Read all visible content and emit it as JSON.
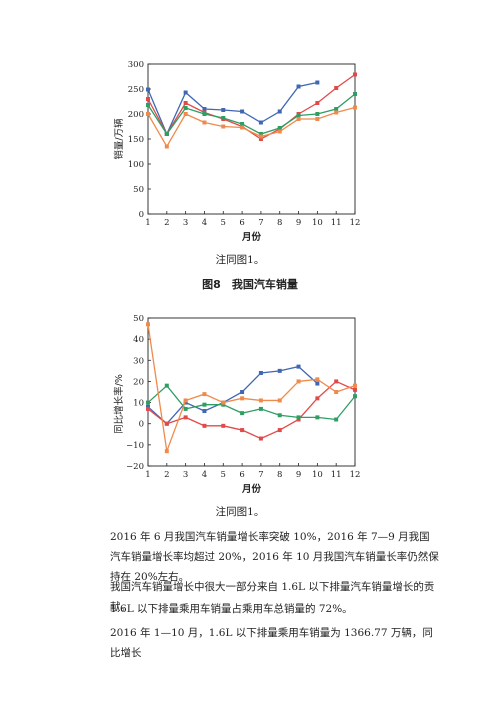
{
  "charts": [
    {
      "ylabel": "销量/万辆",
      "xlabel": "月份",
      "note": "注同图1。",
      "caption": "图8　我国汽车销量",
      "chart_data": {
        "type": "line",
        "x": [
          1,
          2,
          3,
          4,
          5,
          6,
          7,
          8,
          9,
          10,
          11,
          12
        ],
        "xlim": [
          1,
          12
        ],
        "ylim": [
          0,
          300
        ],
        "yticks": [
          0,
          50,
          100,
          150,
          200,
          250,
          300
        ],
        "grid": false,
        "series": [
          {
            "color": "#3f67b4",
            "values": [
              249,
              160,
              243,
              210,
              208,
              205,
              183,
              205,
              255,
              263,
              null,
              null
            ]
          },
          {
            "color": "#e24a4a",
            "values": [
              230,
              160,
              222,
              203,
              190,
              175,
              150,
              170,
              200,
              222,
              252,
              279
            ]
          },
          {
            "color": "#2e9e63",
            "values": [
              218,
              160,
              212,
              200,
              192,
              180,
              160,
              172,
              197,
              200,
              210,
              240
            ]
          },
          {
            "color": "#ef8a4c",
            "values": [
              200,
              135,
              200,
              183,
              175,
              173,
              155,
              165,
              190,
              190,
              203,
              213
            ]
          }
        ]
      }
    },
    {
      "ylabel": "同比增长率/%",
      "xlabel": "月份",
      "note": "注同图1。",
      "chart_data": {
        "type": "line",
        "x": [
          1,
          2,
          3,
          4,
          5,
          6,
          7,
          8,
          9,
          10,
          11,
          12
        ],
        "xlim": [
          1,
          12
        ],
        "ylim": [
          -20,
          50
        ],
        "yticks": [
          -20,
          -10,
          0,
          10,
          20,
          30,
          40,
          50
        ],
        "grid": false,
        "series": [
          {
            "color": "#3f67b4",
            "values": [
              8,
              0,
              10,
              6,
              10,
              15,
              24,
              25,
              27,
              19,
              null,
              null
            ]
          },
          {
            "color": "#e24a4a",
            "values": [
              7,
              0,
              3,
              -1,
              -1,
              -3,
              -7,
              -3,
              2,
              12,
              20,
              16
            ]
          },
          {
            "color": "#2e9e63",
            "values": [
              10,
              18,
              7,
              9,
              9,
              5,
              7,
              4,
              3,
              3,
              2,
              13
            ]
          },
          {
            "color": "#ef8a4c",
            "values": [
              47,
              -13,
              11,
              14,
              10,
              12,
              11,
              11,
              20,
              21,
              15,
              18
            ]
          }
        ]
      }
    }
  ],
  "paragraphs": [
    "2016 年 6 月我国汽车销量增长率突破 10%，2016 年 7—9 月我国汽车销量增长率均超过 20%，2016 年 10 月我国汽车销量长率仍然保持在 20%左右。",
    "我国汽车销量增长中很大一部分来自 1.6L 以下排量汽车销量增长的贡献。",
    "1.6L 以下排量乘用车销量占乘用车总销量的 72%。",
    "2016 年 1—10 月，1.6L 以下排量乘用车销量为 1366.77 万辆，同比增长"
  ]
}
